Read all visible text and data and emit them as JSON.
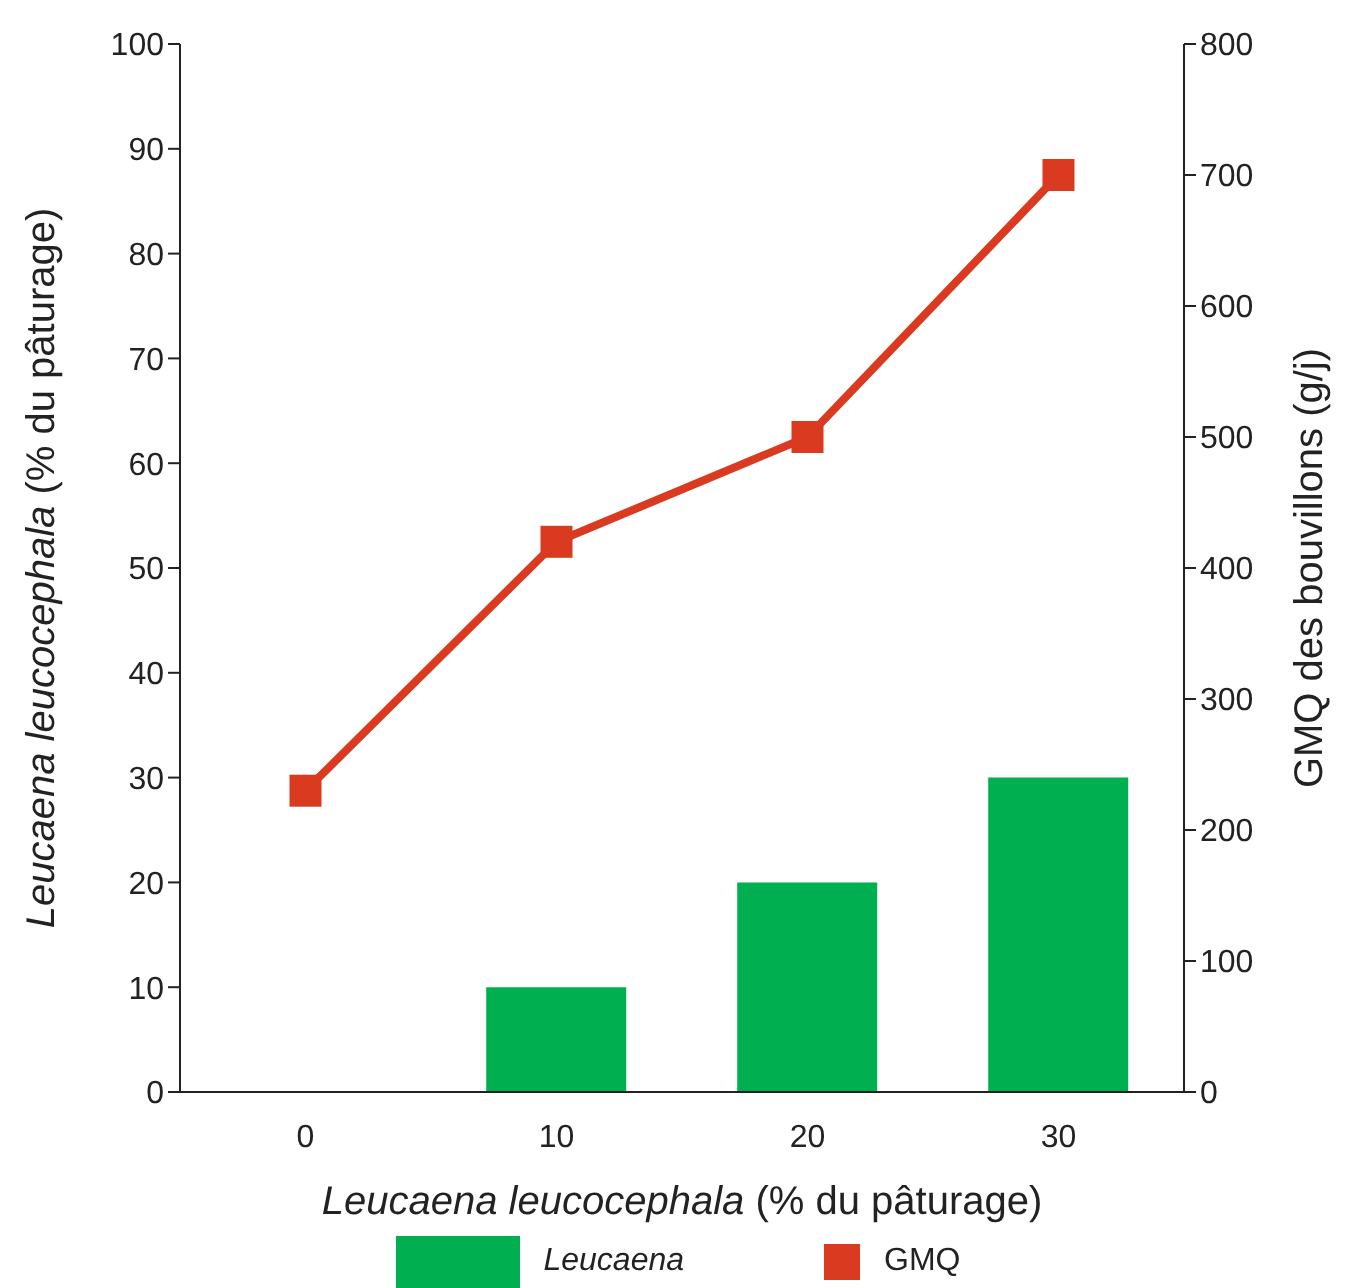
{
  "chart_data": {
    "type": "bar",
    "categories": [
      "0",
      "10",
      "20",
      "30"
    ],
    "xlabel": "Leucaena leucocephala (% du pâturage)",
    "ylabel": "Leucaena leucocephala (% du pâturage)",
    "y2label": "GMQ des bouvillons (g/j)",
    "series": [
      {
        "name": "Leucaena",
        "color": "#00b050",
        "values": [
          0,
          10,
          20,
          30
        ]
      },
      {
        "name": "GMQ",
        "type": "line",
        "axis": "y2",
        "color": "#d93a20",
        "values": [
          230,
          420,
          500,
          700
        ]
      }
    ],
    "ylim": [
      0,
      100
    ],
    "yticks": [
      0,
      10,
      20,
      30,
      40,
      50,
      60,
      70,
      80,
      90,
      100
    ],
    "y2lim": [
      0,
      800
    ],
    "y2ticks": [
      0,
      100,
      200,
      300,
      400,
      500,
      600,
      700,
      800
    ],
    "marker": "square",
    "grid": false,
    "legend": "bottom"
  }
}
